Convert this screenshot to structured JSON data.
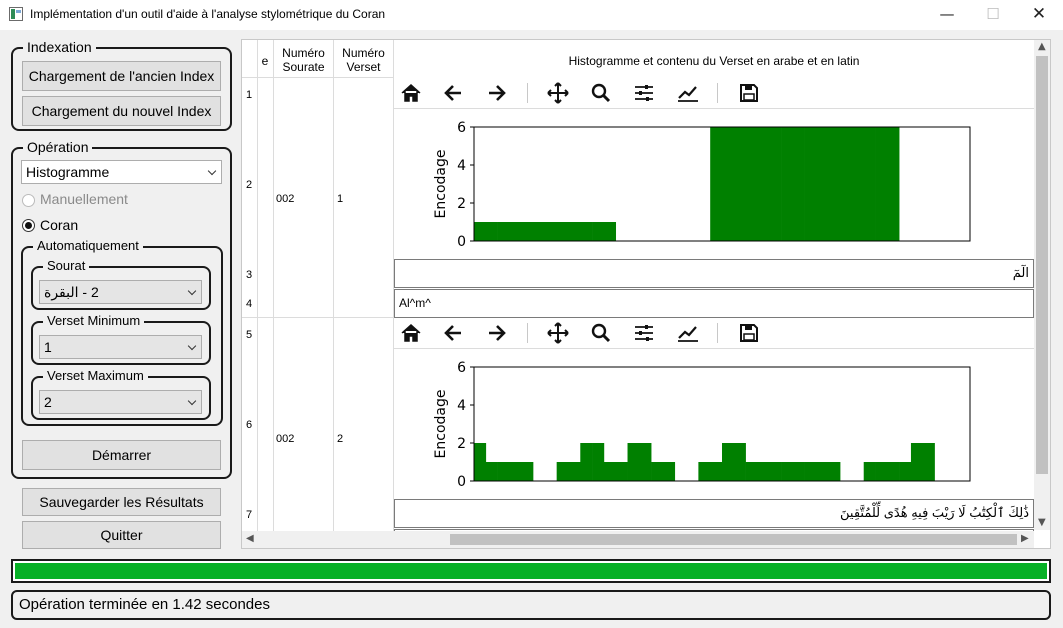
{
  "window": {
    "title": "Implémentation d'un outil d'aide à l'analyse stylométrique du Coran",
    "minimize": "—",
    "maximize": "☐",
    "close": "✕"
  },
  "indexation": {
    "legend": "Indexation",
    "load_old_label": "Chargement de l'ancien Index",
    "load_new_label": "Chargement du nouvel Index"
  },
  "operation": {
    "legend": "Opération",
    "selected": "Histogramme",
    "manual_label": "Manuellement",
    "coran_label": "Coran",
    "mode_selected": "Coran",
    "auto": {
      "legend": "Automatiquement",
      "sourat_label": "Sourat",
      "sourat_value": "2 - البقرة",
      "min_label": "Verset Minimum",
      "min_value": "1",
      "max_label": "Verset Maximum",
      "max_value": "2"
    },
    "start_label": "Démarrer"
  },
  "actions": {
    "save_label": "Sauvegarder les Résultats",
    "quit_label": "Quitter"
  },
  "table": {
    "headers": {
      "col0": "e",
      "col1": "Numéro\nSourate",
      "col2": "Numéro\nVerset",
      "col3": "Histogramme et contenu du Verset en arabe et en latin"
    },
    "row_numbers": [
      "1",
      "2",
      "3",
      "4",
      "5",
      "6",
      "7"
    ],
    "rows": [
      {
        "sourate": "002",
        "verset": "1",
        "arabic": "الٓمٓ",
        "latin": "Al^m^"
      },
      {
        "sourate": "002",
        "verset": "2",
        "arabic": "ذَٰلِكَ ٱلْكِتَٰبُ لَا رَيْبَ فِيهِ هُدًى لِّلْمُتَّقِينَ",
        "latin": ""
      }
    ],
    "toolbar_icons": [
      "home-icon",
      "back-arrow-icon",
      "forward-arrow-icon",
      "pan-icon",
      "zoom-icon",
      "configure-subplots-icon",
      "edit-axis-icon",
      "save-icon"
    ]
  },
  "chart_data": [
    {
      "type": "bar",
      "ylabel": "Encodage",
      "xlabel": "",
      "ylim": [
        0,
        6
      ],
      "yticks": [
        "0",
        "2",
        "4",
        "6"
      ],
      "xlim": [
        0,
        21
      ],
      "bar_color": "#008000",
      "values": [
        1,
        1,
        1,
        1,
        1,
        1,
        0,
        0,
        0,
        0,
        6,
        6,
        6,
        6,
        6,
        6,
        6,
        6,
        0,
        0,
        0
      ]
    },
    {
      "type": "bar",
      "ylabel": "Encodage",
      "xlabel": "",
      "ylim": [
        0,
        6
      ],
      "yticks": [
        "0",
        "2",
        "4",
        "6"
      ],
      "xlim": [
        0,
        42
      ],
      "bar_color": "#008000",
      "values": [
        2,
        1,
        1,
        1,
        1,
        0,
        0,
        1,
        1,
        2,
        2,
        1,
        1,
        2,
        2,
        1,
        1,
        0,
        0,
        1,
        1,
        2,
        2,
        1,
        1,
        1,
        1,
        1,
        1,
        1,
        1,
        0,
        0,
        1,
        1,
        1,
        1,
        2,
        2,
        0,
        0,
        0
      ]
    }
  ],
  "progress": {
    "value": 100
  },
  "status": {
    "text": "Opération terminée en 1.42 secondes"
  },
  "colors": {
    "progress": "#06b025",
    "bars": "#008000"
  }
}
